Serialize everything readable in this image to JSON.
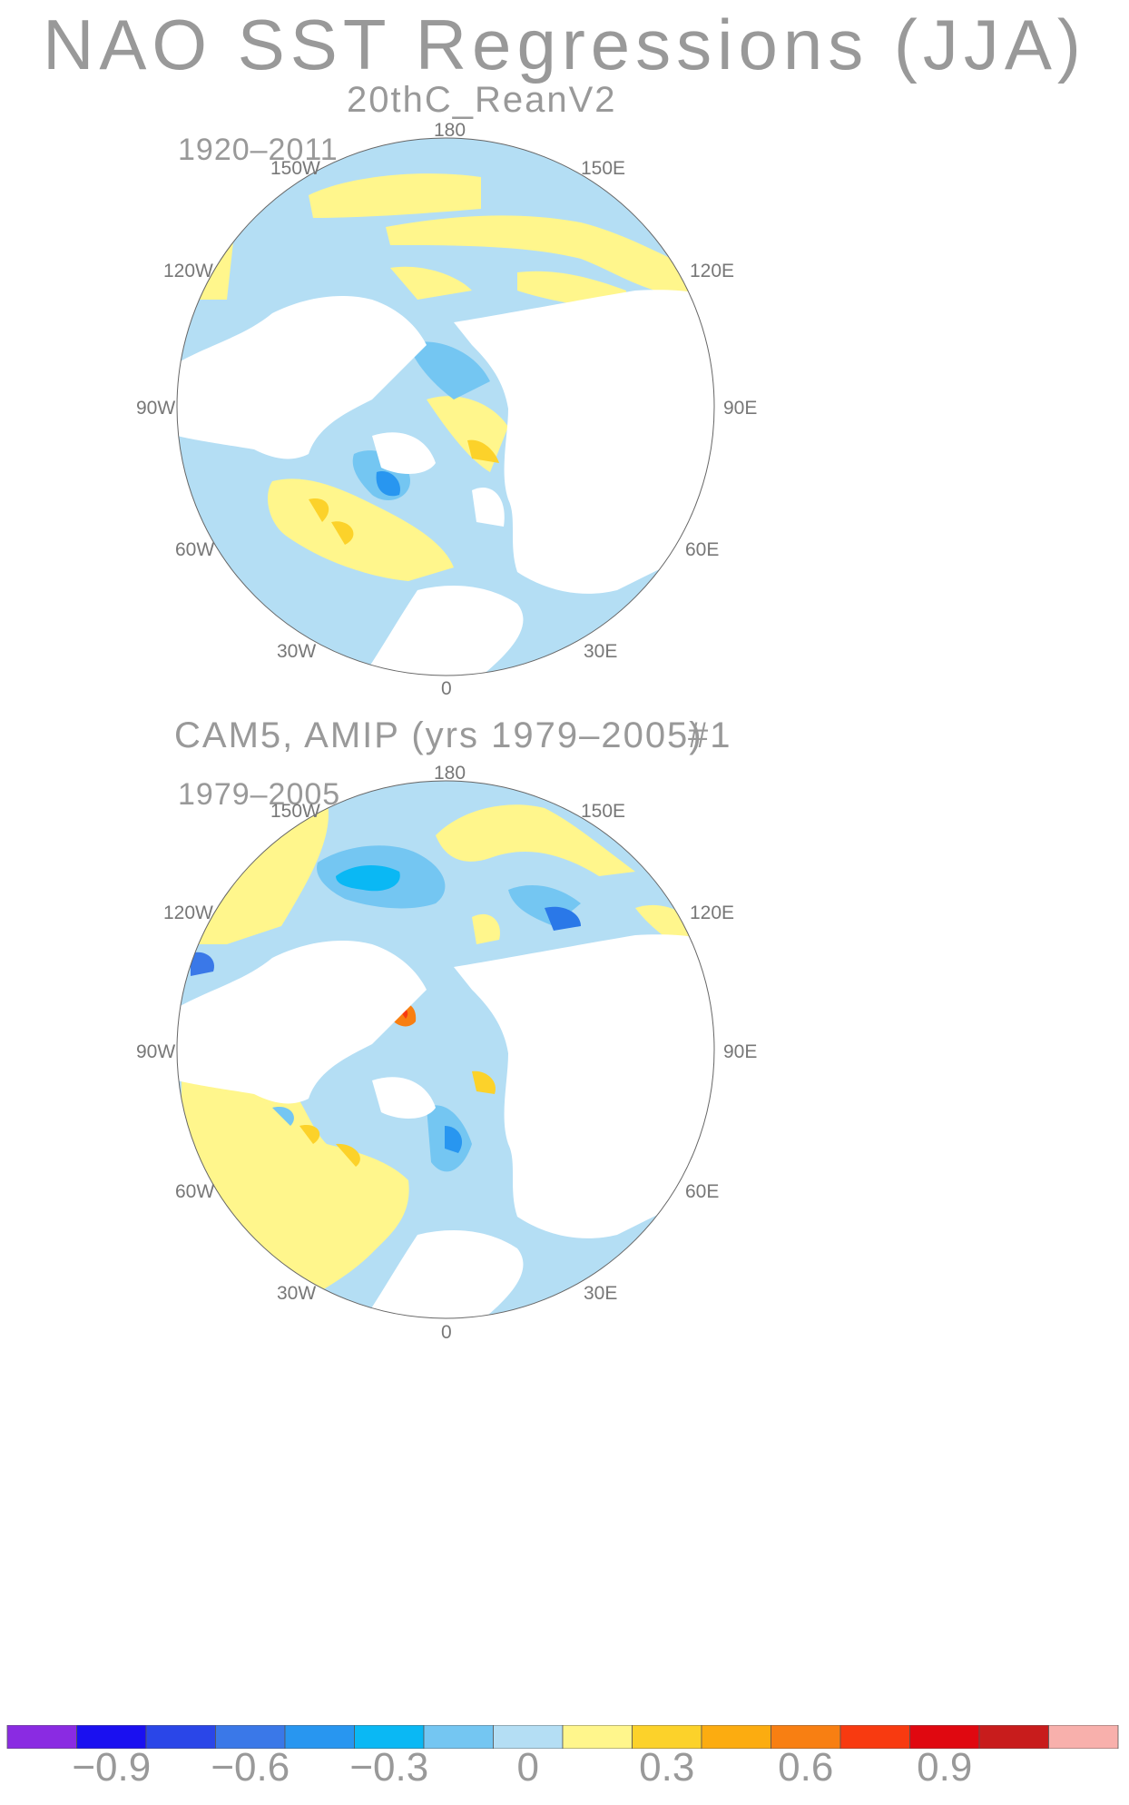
{
  "title": "NAO SST Regressions (JJA)",
  "panels": [
    {
      "subtitle": "20thC_ReanV2",
      "period": "1920–2011",
      "labels": [
        "180",
        "150W",
        "150E",
        "120W",
        "120E",
        "90W",
        "90E",
        "60W",
        "60E",
        "30W",
        "30E",
        "0"
      ]
    },
    {
      "subtitle": "CAM5, AMIP (yrs 1979–2005)",
      "run": "#1",
      "period": "1979–2005",
      "labels": [
        "180",
        "150W",
        "150E",
        "120W",
        "120E",
        "90W",
        "90E",
        "60W",
        "60E",
        "30W",
        "30E",
        "0"
      ]
    }
  ],
  "colorbar": {
    "colors": [
      "#8a2be2",
      "#1a10f0",
      "#2a46e8",
      "#3a78e8",
      "#2896f0",
      "#0ab8f4",
      "#74c6f2",
      "#b4def4",
      "#fff68c",
      "#fcd22a",
      "#fcac10",
      "#f87f12",
      "#f83a10",
      "#e00810",
      "#c81c1c",
      "#f8b0ac"
    ],
    "tick_labels": [
      "−0.9",
      "−0.6",
      "−0.3",
      "0",
      "0.3",
      "0.6",
      "0.9"
    ],
    "ticks": [
      -0.9,
      -0.6,
      -0.3,
      0,
      0.3,
      0.6,
      0.9
    ]
  }
}
